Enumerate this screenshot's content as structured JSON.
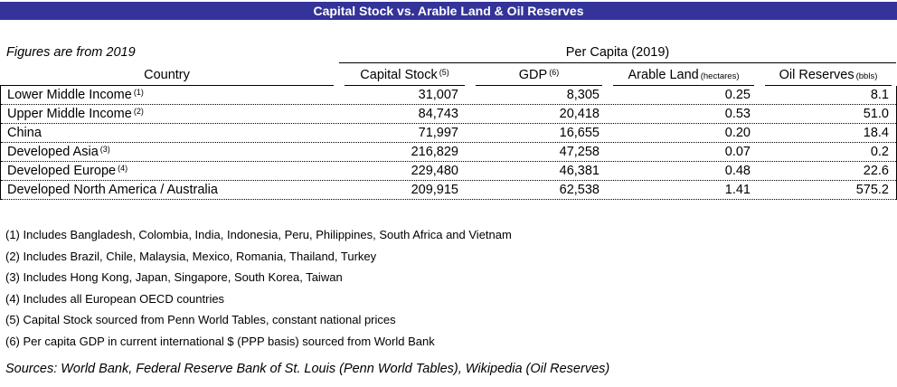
{
  "title": "Capital Stock vs. Arable Land & Oil Reserves",
  "subtitle": "Figures are from 2019",
  "table": {
    "group_header": "Per Capita (2019)",
    "columns": {
      "country": "Country",
      "capital_stock": {
        "label": "Capital Stock",
        "sup": "(5)"
      },
      "gdp": {
        "label": "GDP",
        "sup": "(6)"
      },
      "arable_land": {
        "label": "Arable Land",
        "unit": "(hectares)"
      },
      "oil_reserves": {
        "label": "Oil Reserves",
        "unit": "(bbls)"
      }
    },
    "rows": [
      {
        "country": "Lower Middle Income",
        "sup": "(1)",
        "capital_stock": "31,007",
        "gdp": "8,305",
        "arable_land": "0.25",
        "oil_reserves": "8.1"
      },
      {
        "country": "Upper Middle Income",
        "sup": "(2)",
        "capital_stock": "84,743",
        "gdp": "20,418",
        "arable_land": "0.53",
        "oil_reserves": "51.0"
      },
      {
        "country": "China",
        "sup": "",
        "capital_stock": "71,997",
        "gdp": "16,655",
        "arable_land": "0.20",
        "oil_reserves": "18.4"
      },
      {
        "country": "Developed Asia",
        "sup": "(3)",
        "capital_stock": "216,829",
        "gdp": "47,258",
        "arable_land": "0.07",
        "oil_reserves": "0.2"
      },
      {
        "country": "Developed Europe",
        "sup": "(4)",
        "capital_stock": "229,480",
        "gdp": "46,381",
        "arable_land": "0.48",
        "oil_reserves": "22.6"
      },
      {
        "country": "Developed North America / Australia",
        "sup": "",
        "capital_stock": "209,915",
        "gdp": "62,538",
        "arable_land": "1.41",
        "oil_reserves": "575.2"
      }
    ]
  },
  "footnotes": [
    "(1) Includes Bangladesh, Colombia, India, Indonesia, Peru, Philippines, South Africa and Vietnam",
    "(2) Includes Brazil, Chile, Malaysia, Mexico, Romania, Thailand, Turkey",
    "(3) Includes Hong Kong, Japan, Singapore, South Korea, Taiwan",
    "(4) Includes all European OECD countries",
    "(5) Capital Stock sourced from Penn World Tables, constant national prices",
    "(6) Per capita GDP in current international $ (PPP basis) sourced from World Bank"
  ],
  "sources": "Sources: World Bank, Federal Reserve Bank of St. Louis (Penn World Tables), Wikipedia (Oil Reserves)",
  "colors": {
    "title_bar_bg": "#333399",
    "title_text": "#FFFFFF"
  },
  "chart_data": {
    "type": "table",
    "title": "Capital Stock vs. Arable Land & Oil Reserves",
    "subtitle": "Figures are from 2019",
    "group_header": "Per Capita (2019)",
    "columns": [
      "Country",
      "Capital Stock (5)",
      "GDP (6)",
      "Arable Land (hectares)",
      "Oil Reserves (bbls)"
    ],
    "rows": [
      [
        "Lower Middle Income (1)",
        31007,
        8305,
        0.25,
        8.1
      ],
      [
        "Upper Middle Income (2)",
        84743,
        20418,
        0.53,
        51.0
      ],
      [
        "China",
        71997,
        16655,
        0.2,
        18.4
      ],
      [
        "Developed Asia (3)",
        216829,
        47258,
        0.07,
        0.2
      ],
      [
        "Developed Europe (4)",
        229480,
        46381,
        0.48,
        22.6
      ],
      [
        "Developed North America / Australia",
        209915,
        62538,
        1.41,
        575.2
      ]
    ]
  }
}
